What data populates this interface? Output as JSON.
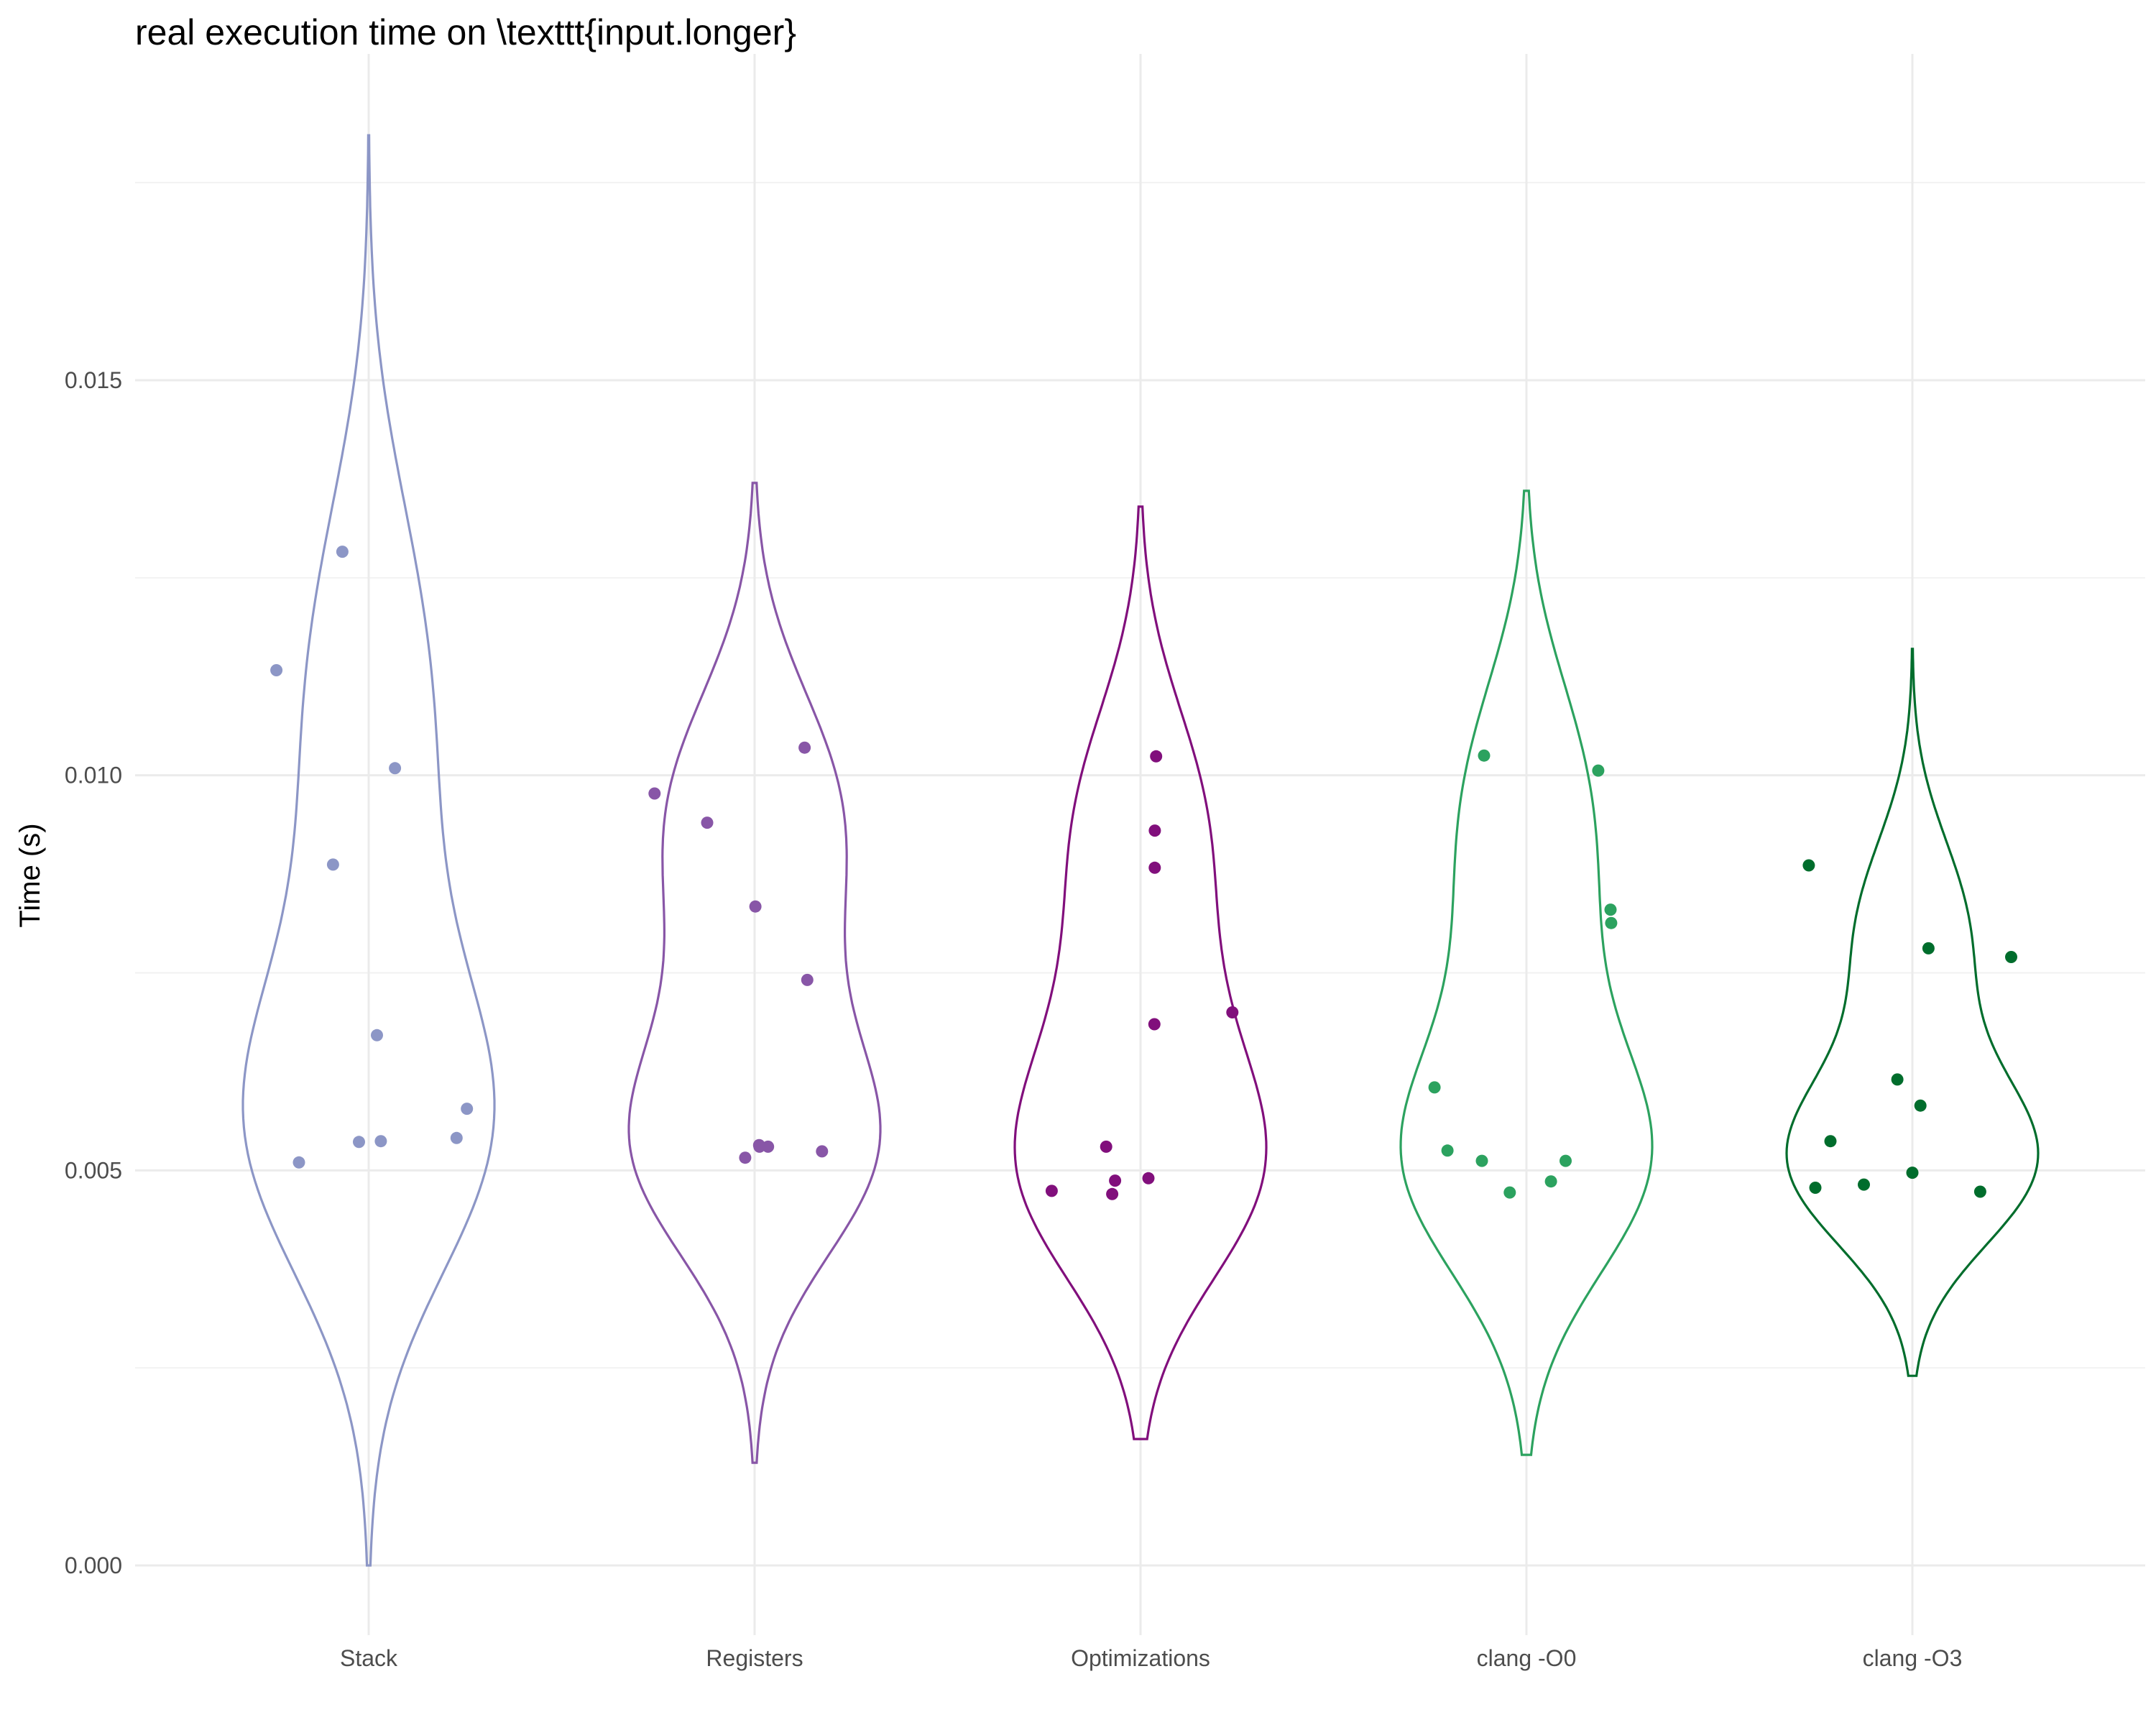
{
  "chart_data": {
    "type": "violin",
    "title": "real execution time on \\texttt{input.longer}",
    "xlabel": "",
    "ylabel": "Time (s)",
    "ylim": [
      -0.0009,
      0.0192
    ],
    "yticks": [
      0.0,
      0.005,
      0.01,
      0.015
    ],
    "ytick_labels": [
      "0.000",
      "0.005",
      "0.010",
      "0.015"
    ],
    "grid": true,
    "categories": [
      "Stack",
      "Registers",
      "Optimizations",
      "clang -O0",
      "clang -O3"
    ],
    "series": [
      {
        "category": "Stack",
        "color": "#8c96c6",
        "range": [
          0.0,
          0.0181
        ],
        "points": [
          0.00541,
          0.01133,
          0.00537,
          0.01283,
          0.00536,
          0.01009,
          0.0051,
          0.00887,
          0.00671,
          0.00578
        ]
      },
      {
        "category": "Registers",
        "color": "#8856a7",
        "range": [
          0.0013,
          0.0137
        ],
        "points": [
          0.01035,
          0.0053,
          0.00516,
          0.0094,
          0.00524,
          0.00741,
          0.00834,
          0.0053,
          0.00532,
          0.00977
        ]
      },
      {
        "category": "Optimizations",
        "color": "#810f7c",
        "range": [
          0.0016,
          0.0134
        ],
        "points": [
          0.00474,
          0.0047,
          0.0053,
          0.007,
          0.0049,
          0.0093,
          0.00685,
          0.01024,
          0.00883,
          0.00487
        ]
      },
      {
        "category": "clang -O0",
        "color": "#2ca25f",
        "range": [
          0.0014,
          0.0136
        ],
        "points": [
          0.00472,
          0.01025,
          0.0083,
          0.00486,
          0.00813,
          0.00512,
          0.00525,
          0.01006,
          0.00605,
          0.00512
        ]
      },
      {
        "category": "clang -O3",
        "color": "#006d2c",
        "range": [
          0.0024,
          0.0116
        ],
        "points": [
          0.00473,
          0.00582,
          0.00478,
          0.00537,
          0.00482,
          0.0077,
          0.00615,
          0.00886,
          0.00497,
          0.00781
        ]
      }
    ]
  }
}
